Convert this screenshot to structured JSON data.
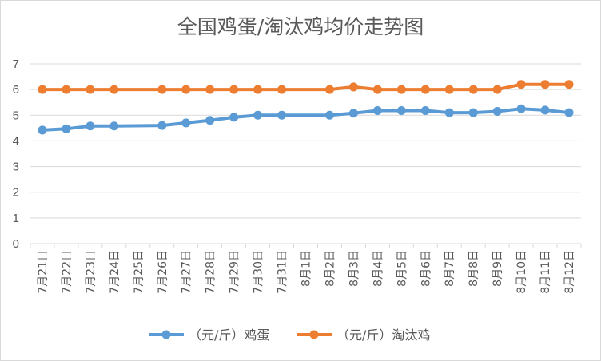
{
  "chart_data": {
    "type": "line",
    "title": "全国鸡蛋/淘汰鸡均价走势图",
    "categories": [
      "7月21日",
      "7月22日",
      "7月23日",
      "7月24日",
      "7月25日",
      "7月26日",
      "7月27日",
      "7月28日",
      "7月29日",
      "7月30日",
      "7月31日",
      "8月1日",
      "8月2日",
      "8月3日",
      "8月4日",
      "8月5日",
      "8月6日",
      "8月7日",
      "8月8日",
      "8月9日",
      "8月10日",
      "8月11日",
      "8月12日"
    ],
    "series": [
      {
        "name": "（元/斤）鸡蛋",
        "color": "#5b9bd5",
        "values": [
          4.42,
          4.47,
          4.58,
          4.58,
          null,
          4.6,
          4.7,
          4.8,
          4.92,
          5.0,
          5.0,
          null,
          5.0,
          5.08,
          5.18,
          5.18,
          5.18,
          5.1,
          5.1,
          5.15,
          5.25,
          5.2,
          5.1
        ]
      },
      {
        "name": "（元/斤）淘汰鸡",
        "color": "#ed7d31",
        "values": [
          6.0,
          6.0,
          6.0,
          6.0,
          null,
          6.0,
          6.0,
          6.0,
          6.0,
          6.0,
          6.0,
          null,
          6.0,
          6.1,
          6.0,
          6.0,
          6.0,
          6.0,
          6.0,
          6.0,
          6.2,
          6.2,
          6.2
        ]
      }
    ],
    "xlabel": "",
    "ylabel": "",
    "ylim": [
      0,
      7
    ],
    "yticks": [
      0,
      1,
      2,
      3,
      4,
      5,
      6,
      7
    ],
    "grid": true,
    "gridColor": "#d9d9d9",
    "legend": "bottom"
  }
}
